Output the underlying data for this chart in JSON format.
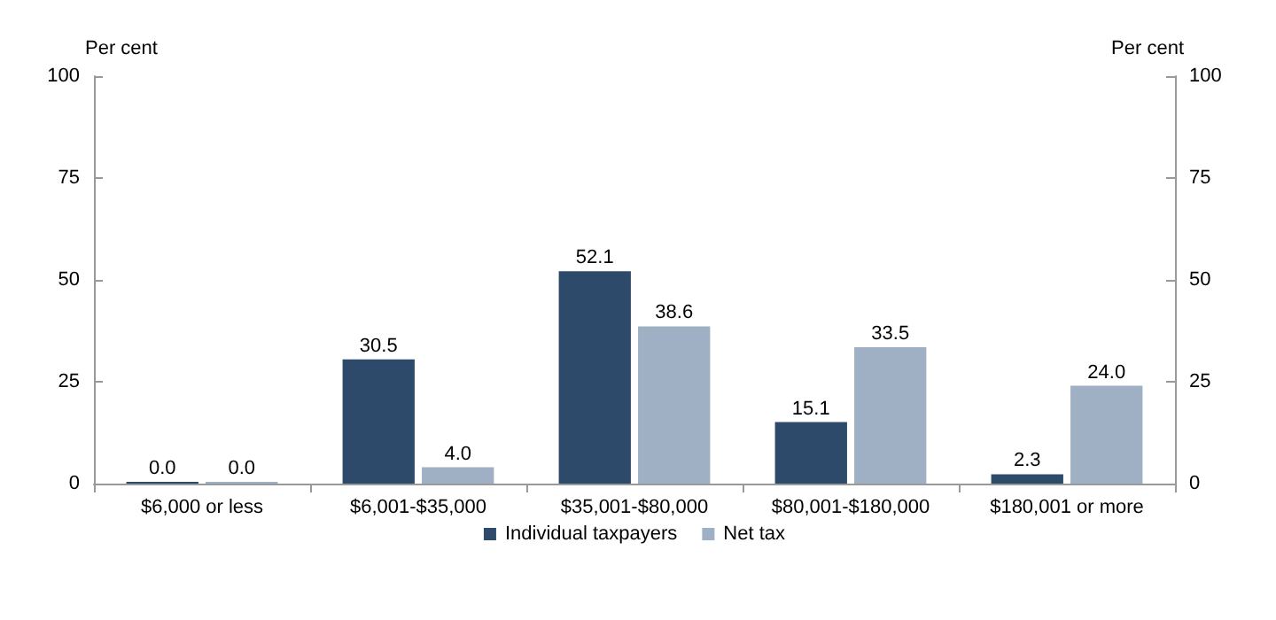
{
  "chart_data": {
    "type": "bar",
    "ylabel": "Per cent",
    "y2label": "Per cent",
    "categories": [
      "$6,000 or less",
      "$6,001-$35,000",
      "$35,001-$80,000",
      "$80,001-$180,000",
      "$180,001 or more"
    ],
    "series": [
      {
        "name": "Individual taxpayers",
        "color": "#2e4a6b",
        "values": [
          0.0,
          30.5,
          52.1,
          15.1,
          2.3
        ],
        "value_labels": [
          "0.0",
          "30.5",
          "52.1",
          "15.1",
          "2.3"
        ]
      },
      {
        "name": "Net tax",
        "color": "#9fb0c4",
        "values": [
          0.0,
          4.0,
          38.6,
          33.5,
          24.0
        ],
        "value_labels": [
          "0.0",
          "4.0",
          "38.6",
          "33.5",
          "24.0"
        ]
      }
    ],
    "ylim": [
      0,
      100
    ],
    "yticks": [
      0,
      25,
      50,
      75,
      100
    ],
    "y2lim": [
      0,
      100
    ],
    "y2ticks": [
      0,
      25,
      50,
      75,
      100
    ],
    "grid": false,
    "legend": "bottom"
  }
}
